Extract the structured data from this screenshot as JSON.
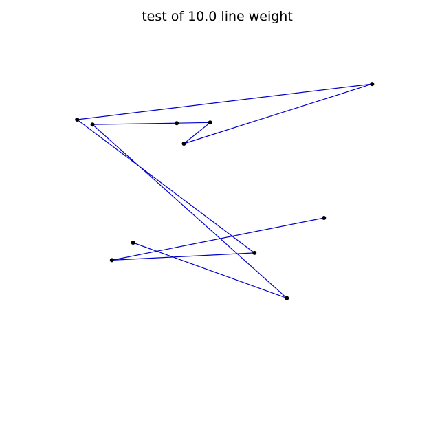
{
  "chart_data": {
    "type": "line",
    "title": "test of 10.0 line weight",
    "xlabel": "",
    "ylabel": "",
    "axes_visible": false,
    "grid": false,
    "xlim": [
      0,
      1
    ],
    "ylim": [
      0,
      1
    ],
    "line_color": "#0000cc",
    "marker_color": "#000000",
    "series": [
      {
        "x": [
          0.229,
          0.68,
          0.11,
          0.357,
          0.455,
          0.378,
          0.93,
          0.065,
          0.585,
          0.167,
          0.789
        ],
        "y": [
          0.425,
          0.257,
          0.783,
          0.787,
          0.789,
          0.725,
          0.906,
          0.798,
          0.394,
          0.372,
          0.5
        ]
      }
    ]
  }
}
